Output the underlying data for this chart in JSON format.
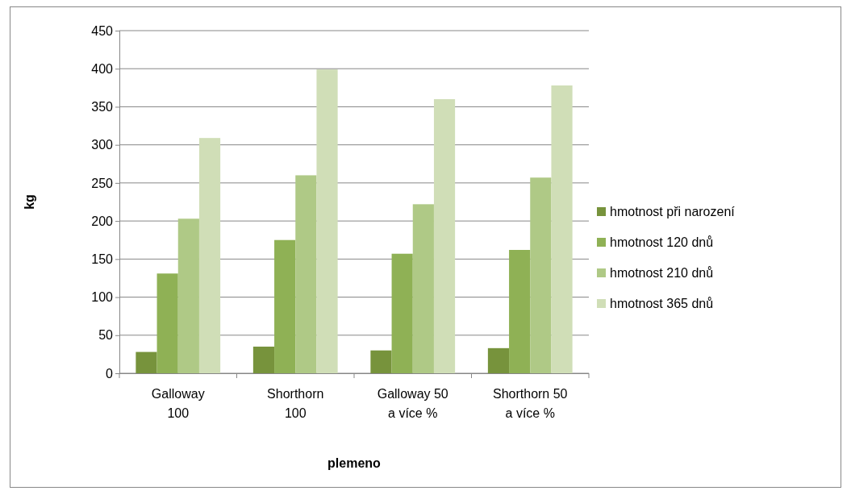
{
  "chart_data": {
    "type": "bar",
    "xlabel": "plemeno",
    "ylabel": "kg",
    "categories": [
      "Galloway 100",
      "Shorthorn 100",
      "Galloway 50 a více %",
      "Shorthorn 50 a více %"
    ],
    "series": [
      {
        "name": "hmotnost při narození",
        "color": "#77933c",
        "values": [
          28,
          35,
          30,
          33
        ]
      },
      {
        "name": "hmotnost 120 dnů",
        "color": "#8fb155",
        "values": [
          131,
          175,
          157,
          162
        ]
      },
      {
        "name": "hmotnost 210 dnů",
        "color": "#afc986",
        "values": [
          203,
          260,
          222,
          257
        ]
      },
      {
        "name": "hmotnost 365 dnů",
        "color": "#d0deb7",
        "values": [
          309,
          399,
          360,
          378
        ]
      }
    ],
    "ylim": [
      0,
      450
    ],
    "yticks": [
      0,
      50,
      100,
      150,
      200,
      250,
      300,
      350,
      400,
      450
    ],
    "grid": "y",
    "legend": "right"
  }
}
